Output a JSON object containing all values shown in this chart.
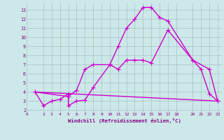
{
  "xlabel": "Windchill (Refroidissement éolien,°C)",
  "bg_color": "#cce8e8",
  "line_color": "#cc00cc",
  "xlim": [
    0,
    23.5
  ],
  "ylim": [
    1.8,
    13.8
  ],
  "xticks": [
    0,
    2,
    3,
    4,
    5,
    6,
    7,
    8,
    9,
    10,
    11,
    12,
    13,
    14,
    15,
    16,
    17,
    18,
    20,
    21,
    22,
    23
  ],
  "yticks": [
    2,
    3,
    4,
    5,
    6,
    7,
    8,
    9,
    10,
    11,
    12,
    13
  ],
  "line1_x": [
    1,
    2,
    3,
    4,
    5,
    5,
    6,
    7,
    8,
    10,
    11,
    12,
    13,
    14,
    15,
    16,
    17,
    20,
    21,
    22,
    23
  ],
  "line1_y": [
    4,
    2.5,
    3.0,
    3.2,
    3.8,
    2.5,
    3.0,
    3.1,
    4.5,
    7.0,
    9.0,
    11.0,
    12.0,
    13.3,
    13.3,
    12.2,
    11.8,
    7.5,
    6.5,
    3.8,
    3.0
  ],
  "line2_x": [
    1,
    5,
    6,
    7,
    8,
    10,
    11,
    12,
    13,
    14,
    15,
    17,
    20,
    22,
    23
  ],
  "line2_y": [
    4.0,
    3.5,
    4.2,
    6.5,
    7.0,
    7.0,
    6.5,
    7.5,
    7.5,
    7.5,
    7.2,
    10.8,
    7.5,
    6.5,
    3.0
  ],
  "line3_x": [
    1,
    23
  ],
  "line3_y": [
    4.0,
    3.0
  ],
  "marker": "P",
  "markersize": 3,
  "linewidth": 1.0
}
